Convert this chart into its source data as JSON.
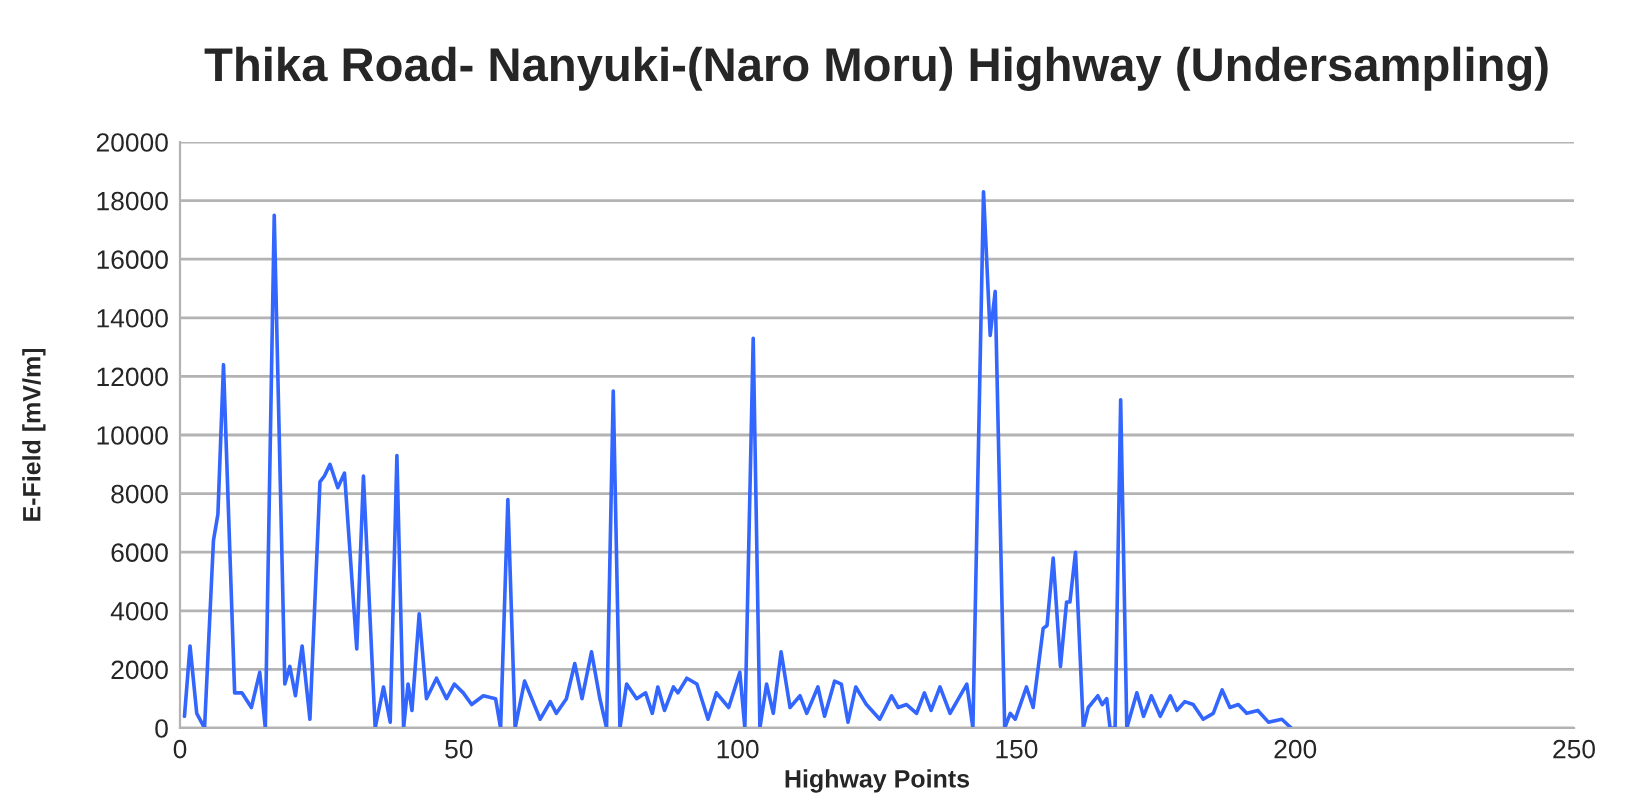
{
  "chart_data": {
    "type": "line",
    "title": "Thika Road- Nanyuki-(Naro Moru) Highway (Undersampling)",
    "xlabel": "Highway Points",
    "ylabel": "E-Field [mV/m]",
    "xlim": [
      0,
      250
    ],
    "xticks": [
      0,
      50,
      100,
      150,
      200,
      250
    ],
    "ylim": [
      0,
      20000
    ],
    "yticks": [
      0,
      2000,
      4000,
      6000,
      8000,
      10000,
      12000,
      14000,
      16000,
      18000,
      20000
    ],
    "grid": "y",
    "legend": false,
    "marker": "none",
    "line_style": "solid",
    "series": [
      {
        "color": "#3366ff",
        "x": [
          0.8,
          1.8,
          3,
          4.4,
          6,
          6.8,
          7.8,
          9.8,
          11.1,
          12.8,
          14.3,
          15.3,
          16.9,
          18.8,
          19.7,
          20.7,
          21.9,
          23.3,
          25.1,
          25.9,
          26.9,
          28.3,
          29.5,
          31.7,
          32.9,
          35,
          36.5,
          37.7,
          38.9,
          40.1,
          40.9,
          41.6,
          42.9,
          44.2,
          46,
          47.8,
          49.2,
          50.8,
          52.3,
          54.4,
          56.6,
          57.5,
          58.8,
          60.1,
          61.8,
          64.6,
          66.4,
          67.5,
          69.3,
          70.8,
          72.1,
          73.8,
          75.3,
          76.5,
          77.7,
          78.9,
          80.1,
          81.9,
          83.5,
          84.7,
          85.7,
          86.9,
          88.5,
          89.3,
          90.9,
          92.7,
          94.7,
          96.2,
          98.4,
          100.4,
          101.3,
          102.8,
          104,
          105.2,
          106.4,
          107.8,
          109.4,
          111.2,
          112.4,
          114.4,
          115.6,
          117.4,
          118.6,
          119.8,
          121.2,
          123.1,
          125.5,
          127.6,
          128.8,
          130.3,
          132.1,
          133.5,
          134.7,
          136.3,
          138.1,
          141.1,
          142.2,
          144.1,
          145.3,
          146.2,
          147.9,
          148.9,
          149.8,
          151.8,
          153,
          154.8,
          155.5,
          156.6,
          157.9,
          159,
          159.6,
          160.6,
          162,
          162.9,
          164.6,
          165.4,
          166.2,
          166.8,
          167.7,
          168.7,
          169.8,
          171.6,
          172.8,
          174.2,
          175.8,
          177.6,
          178.8,
          180.2,
          181.7,
          183.5,
          185.3,
          186.9,
          188.3,
          189.8,
          191.3,
          193.3,
          195.2,
          197.6,
          199.3
        ],
        "values": [
          400,
          2800,
          500,
          0,
          6400,
          7300,
          12400,
          1200,
          1200,
          700,
          1900,
          0,
          17500,
          1500,
          2100,
          1100,
          2800,
          300,
          8400,
          8600,
          9000,
          8200,
          8700,
          2700,
          8600,
          0,
          1400,
          200,
          9300,
          0,
          1500,
          600,
          3900,
          1000,
          1700,
          1000,
          1500,
          1200,
          800,
          1100,
          1000,
          0,
          7800,
          0,
          1600,
          300,
          900,
          500,
          1000,
          2200,
          1000,
          2600,
          1000,
          0,
          11500,
          0,
          1500,
          1000,
          1200,
          500,
          1400,
          600,
          1400,
          1200,
          1700,
          1500,
          300,
          1200,
          700,
          1900,
          0,
          13300,
          0,
          1500,
          500,
          2600,
          700,
          1100,
          500,
          1400,
          400,
          1600,
          1500,
          200,
          1400,
          800,
          300,
          1100,
          700,
          800,
          500,
          1200,
          600,
          1400,
          500,
          1500,
          0,
          18300,
          13400,
          14900,
          0,
          500,
          300,
          1400,
          700,
          3400,
          3500,
          5800,
          2100,
          4300,
          4300,
          6000,
          0,
          700,
          1100,
          800,
          1000,
          0,
          0,
          11200,
          0,
          1200,
          400,
          1100,
          400,
          1100,
          600,
          900,
          800,
          300,
          500,
          1300,
          700,
          800,
          500,
          600,
          200,
          300,
          0
        ]
      }
    ]
  }
}
